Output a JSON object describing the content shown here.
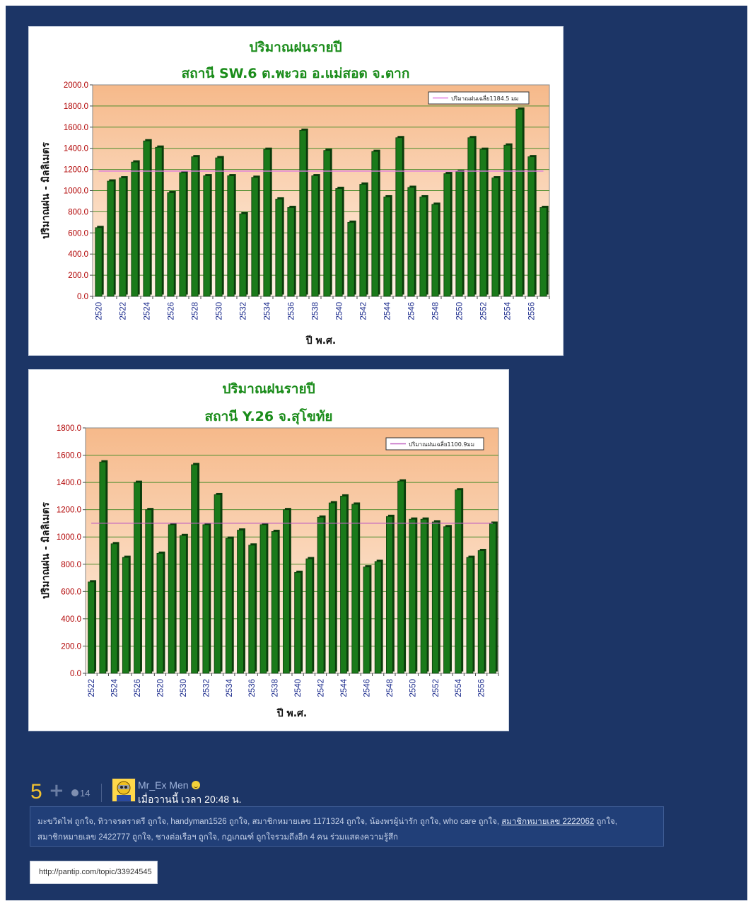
{
  "chart_data": [
    {
      "type": "bar",
      "title": "ปริมาณฝนรายปี",
      "subtitle": "สถานี  SW.6  ต.พะวอ  อ.แม่สอด  จ.ตาก",
      "xlabel": "ปี พ.ศ.",
      "ylabel": "ปริมาณฝน - มิลลิเมตร",
      "ylim": [
        0,
        2000
      ],
      "yticks": [
        "0.0",
        "200.0",
        "400.0",
        "600.0",
        "800.0",
        "1000.0",
        "1200.0",
        "1400.0",
        "1600.0",
        "1800.0",
        "2000.0"
      ],
      "xticks": [
        "2520",
        "2522",
        "2524",
        "2526",
        "2528",
        "2530",
        "2532",
        "2534",
        "2536",
        "2538",
        "2540",
        "2542",
        "2544",
        "2546",
        "2548",
        "2550",
        "2552",
        "2554",
        "2556"
      ],
      "values": [
        650,
        1090,
        1120,
        1270,
        1470,
        1410,
        980,
        1170,
        1320,
        1140,
        1310,
        1140,
        780,
        1125,
        1390,
        920,
        840,
        1570,
        1140,
        1380,
        1020,
        700,
        1060,
        1370,
        940,
        1500,
        1030,
        940,
        870,
        1160,
        1180,
        1500,
        1390,
        1120,
        1430,
        1770,
        1320,
        840
      ],
      "average_value": 1184.5,
      "legend": "ปริมาณฝนเฉลี่ย1184.5 มม",
      "legend_position": "top-right",
      "grid": true,
      "colors": {
        "bar": "#1a7a1a",
        "bar_dark": "#0b3d0b",
        "avg_line": "#e07ae0",
        "title": "#1a8c1a",
        "y_tick": "#b00000",
        "x_tick": "#1a2a8c",
        "plot_top": "#f6b98a",
        "plot_bottom": "#fef2e6"
      }
    },
    {
      "type": "bar",
      "title": "ปริมาณฝนรายปี",
      "subtitle": "สถานี Y.26 จ.สุโขทัย",
      "xlabel": "ปี พ.ศ.",
      "ylabel": "ปริมาณฝน - มิลลิเมตร",
      "ylim": [
        0,
        1800
      ],
      "yticks": [
        "0.0",
        "200.0",
        "400.0",
        "600.0",
        "800.0",
        "1000.0",
        "1200.0",
        "1400.0",
        "1600.0",
        "1800.0"
      ],
      "xticks": [
        "2522",
        "2524",
        "2526",
        "2520",
        "2530",
        "2532",
        "2534",
        "2536",
        "2538",
        "2540",
        "2542",
        "2544",
        "2546",
        "2548",
        "2550",
        "2552",
        "2554",
        "2556"
      ],
      "values": [
        670,
        1550,
        950,
        850,
        1400,
        1200,
        880,
        1090,
        1010,
        1530,
        1090,
        1310,
        990,
        1050,
        940,
        1090,
        1040,
        1200,
        740,
        840,
        1145,
        1250,
        1300,
        1240,
        780,
        820,
        1150,
        1410,
        1130,
        1130,
        1110,
        1075,
        1345,
        850,
        900,
        1100
      ],
      "average_value": 1100.9,
      "legend": "ปริมาณฝนเฉลี่ย1100.9มม",
      "legend_position": "top-right",
      "grid": true,
      "colors": {
        "bar": "#1a7a1a",
        "bar_dark": "#0b3d0b",
        "avg_line": "#c060c0",
        "title": "#1a8c1a",
        "y_tick": "#b00000",
        "x_tick": "#1a2a8c",
        "plot_top": "#f6b98a",
        "plot_bottom": "#fef2e6"
      }
    }
  ],
  "post": {
    "vote_count": "5",
    "plus_icon": "plus-icon",
    "comment_count": "14",
    "username": "Mr_Ex Men",
    "timestamp": "เมื่อวานนี้ เวลา 20:48 น.",
    "likes_line1": "มะขวิดไฟ ถูกใจ, ทิวาจรดราตรี ถูกใจ, handyman1526 ถูกใจ, สมาชิกหมายเลข 1171324 ถูกใจ, น้องพรผู้น่ารัก ถูกใจ, who care ถูกใจ,",
    "likes_link": "สมาชิกหมายเลข 2222062",
    "likes_line1_tail": " ถูกใจ,",
    "likes_line2": "สมาชิกหมายเลข 2422777 ถูกใจ, ชางต่อเรือฯ ถูกใจ, กฎเกณฑ์ ถูกใจรวมถึงอีก 4 คน ร่วมแสดงความรู้สึก",
    "url": "http://pantip.com/topic/33924545"
  }
}
